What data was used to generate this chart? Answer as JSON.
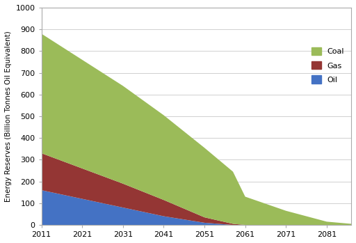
{
  "years": [
    2011,
    2021,
    2031,
    2041,
    2051,
    2058,
    2061,
    2071,
    2081,
    2087
  ],
  "oil": [
    160,
    120,
    80,
    40,
    10,
    0,
    0,
    0,
    0,
    0
  ],
  "gas": [
    170,
    140,
    110,
    75,
    25,
    5,
    0,
    0,
    0,
    0
  ],
  "coal": [
    550,
    500,
    450,
    390,
    320,
    240,
    130,
    65,
    15,
    5
  ],
  "oil_color": "#4472c4",
  "gas_color": "#943634",
  "coal_color": "#9bbb59",
  "ylabel": "Energy Reserves (Billion Tonnes Oil Equivalent)",
  "ylim": [
    0,
    1000
  ],
  "xlim": [
    2011,
    2087
  ],
  "xticks": [
    2011,
    2021,
    2031,
    2041,
    2051,
    2061,
    2071,
    2081
  ],
  "yticks": [
    0,
    100,
    200,
    300,
    400,
    500,
    600,
    700,
    800,
    900,
    1000
  ],
  "bg_color": "#ffffff",
  "grid_color": "#d0d0d0",
  "spine_color": "#aaaaaa",
  "tick_fontsize": 8,
  "ylabel_fontsize": 7.5,
  "legend_fontsize": 8
}
